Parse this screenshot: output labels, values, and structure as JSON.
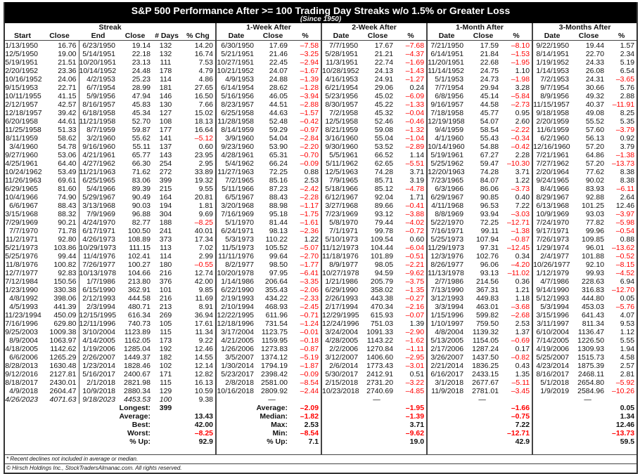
{
  "title": "S&P 500 Performance After >= 100 Trading Day Streaks w/o 1.5% or Greater Loss",
  "subtitle": "(Since 1950)",
  "groups": {
    "streak": "Streak",
    "w1": "1-Week After",
    "w2": "2-Week After",
    "m1": "1-Month After",
    "m3": "3-Months After"
  },
  "columns": {
    "streak": [
      "Start",
      "Close",
      "End",
      "Close",
      "# Days",
      "% Chg"
    ],
    "after": [
      "Date",
      "Close",
      "%"
    ]
  },
  "streak": [
    [
      "1/13/1950",
      "16.76",
      "6/23/1950",
      "19.14",
      "132",
      "14.20"
    ],
    [
      "12/5/1950",
      "19.00",
      "5/14/1951",
      "22.18",
      "132",
      "16.74"
    ],
    [
      "5/19/1951",
      "21.51",
      "10/20/1951",
      "23.13",
      "111",
      "7.53"
    ],
    [
      "2/20/1952",
      "23.36",
      "10/14/1952",
      "24.48",
      "178",
      "4.79"
    ],
    [
      "10/16/1952",
      "24.06",
      "4/2/1953",
      "25.23",
      "114",
      "4.86"
    ],
    [
      "9/15/1953",
      "22.71",
      "6/7/1954",
      "28.99",
      "181",
      "27.65"
    ],
    [
      "10/11/1955",
      "41.15",
      "5/9/1956",
      "47.94",
      "146",
      "16.50"
    ],
    [
      "2/12/1957",
      "42.57",
      "8/16/1957",
      "45.83",
      "130",
      "7.66"
    ],
    [
      "12/18/1957",
      "39.42",
      "6/18/1958",
      "45.34",
      "127",
      "15.02"
    ],
    [
      "6/20/1958",
      "44.61",
      "11/21/1958",
      "52.70",
      "108",
      "18.13"
    ],
    [
      "11/25/1958",
      "51.33",
      "8/7/1959",
      "59.87",
      "177",
      "16.64"
    ],
    [
      "8/11/1959",
      "58.62",
      "3/2/1960",
      "55.62",
      "141",
      "–5.12"
    ],
    [
      "3/4/1960",
      "54.78",
      "9/16/1960",
      "55.11",
      "137",
      "0.60"
    ],
    [
      "9/27/1960",
      "53.06",
      "4/21/1961",
      "65.77",
      "143",
      "23.95"
    ],
    [
      "4/25/1961",
      "64.40",
      "4/27/1962",
      "66.30",
      "254",
      "2.95"
    ],
    [
      "10/24/1962",
      "53.49",
      "11/21/1963",
      "71.62",
      "272",
      "33.89"
    ],
    [
      "11/26/1963",
      "69.61",
      "6/25/1965",
      "83.06",
      "399",
      "19.32"
    ],
    [
      "6/29/1965",
      "81.60",
      "5/4/1966",
      "89.39",
      "215",
      "9.55"
    ],
    [
      "10/4/1966",
      "74.90",
      "5/29/1967",
      "90.49",
      "164",
      "20.81"
    ],
    [
      "6/6/1967",
      "88.43",
      "3/13/1968",
      "90.03",
      "194",
      "1.81"
    ],
    [
      "3/15/1968",
      "88.32",
      "7/9/1969",
      "96.88",
      "304",
      "9.69"
    ],
    [
      "7/29/1969",
      "90.21",
      "4/24/1970",
      "82.77",
      "188",
      "–8.25"
    ],
    [
      "7/7/1970",
      "71.78",
      "6/17/1971",
      "100.50",
      "241",
      "40.01"
    ],
    [
      "11/2/1971",
      "92.80",
      "4/26/1973",
      "108.89",
      "373",
      "17.34"
    ],
    [
      "5/21/1973",
      "103.86",
      "10/29/1973",
      "111.15",
      "113",
      "7.02"
    ],
    [
      "5/25/1976",
      "99.44",
      "11/4/1976",
      "102.41",
      "114",
      "2.99"
    ],
    [
      "11/8/1976",
      "100.82",
      "7/26/1977",
      "100.27",
      "180",
      "–0.55"
    ],
    [
      "12/7/1977",
      "92.83",
      "10/13/1978",
      "104.66",
      "216",
      "12.74"
    ],
    [
      "7/12/1984",
      "150.56",
      "1/7/1986",
      "213.80",
      "376",
      "42.00"
    ],
    [
      "1/23/1990",
      "330.38",
      "6/15/1990",
      "362.91",
      "101",
      "9.85"
    ],
    [
      "4/8/1992",
      "398.06",
      "2/12/1993",
      "444.58",
      "216",
      "11.69"
    ],
    [
      "4/5/1993",
      "441.39",
      "2/3/1994",
      "480.71",
      "213",
      "8.91"
    ],
    [
      "11/23/1994",
      "450.09",
      "12/15/1995",
      "616.34",
      "269",
      "36.94"
    ],
    [
      "7/16/1996",
      "629.80",
      "12/11/1996",
      "740.73",
      "105",
      "17.61"
    ],
    [
      "9/25/2003",
      "1009.38",
      "3/10/2004",
      "1123.89",
      "115",
      "11.34"
    ],
    [
      "8/9/2004",
      "1063.97",
      "4/14/2005",
      "1162.05",
      "173",
      "9.22"
    ],
    [
      "4/18/2005",
      "1142.62",
      "1/19/2006",
      "1285.04",
      "192",
      "12.46"
    ],
    [
      "6/6/2006",
      "1265.29",
      "2/26/2007",
      "1449.37",
      "182",
      "14.55"
    ],
    [
      "8/28/2013",
      "1630.48",
      "1/23/2014",
      "1828.46",
      "102",
      "12.14"
    ],
    [
      "9/12/2016",
      "2127.81",
      "5/16/2017",
      "2400.67",
      "171",
      "12.82"
    ],
    [
      "8/18/2017",
      "2430.01",
      "2/1/2018",
      "2821.98",
      "115",
      "16.13"
    ],
    [
      "4/9/2018",
      "2604.47",
      "10/9/2018",
      "2880.34",
      "129",
      "10.59"
    ],
    [
      "4/26/2023",
      "4071.63",
      "9/18/2023",
      "4453.53",
      "100",
      "9.38"
    ]
  ],
  "w1": [
    [
      "6/30/1950",
      "17.69",
      "–7.58"
    ],
    [
      "5/21/1951",
      "21.46",
      "–3.25"
    ],
    [
      "10/27/1951",
      "22.45",
      "–2.94"
    ],
    [
      "10/21/1952",
      "24.07",
      "–1.67"
    ],
    [
      "4/9/1953",
      "24.88",
      "–1.39"
    ],
    [
      "6/14/1954",
      "28.62",
      "–1.28"
    ],
    [
      "5/16/1956",
      "46.05",
      "–3.94"
    ],
    [
      "8/23/1957",
      "44.51",
      "–2.88"
    ],
    [
      "6/25/1958",
      "44.63",
      "–1.57"
    ],
    [
      "11/28/1958",
      "52.48",
      "–0.42"
    ],
    [
      "8/14/1959",
      "59.29",
      "–0.97"
    ],
    [
      "3/9/1960",
      "54.04",
      "–2.84"
    ],
    [
      "9/23/1960",
      "53.90",
      "–2.20"
    ],
    [
      "4/28/1961",
      "65.31",
      "–0.70"
    ],
    [
      "5/4/1962",
      "66.24",
      "–0.09"
    ],
    [
      "11/27/1963",
      "72.25",
      "0.88"
    ],
    [
      "7/2/1965",
      "85.16",
      "2.53"
    ],
    [
      "5/11/1966",
      "87.23",
      "–2.42"
    ],
    [
      "6/5/1967",
      "88.43",
      "–2.28"
    ],
    [
      "3/20/1968",
      "88.98",
      "–1.17"
    ],
    [
      "7/16/1969",
      "95.18",
      "–1.75"
    ],
    [
      "5/1/1970",
      "81.44",
      "–1.61"
    ],
    [
      "6/24/1971",
      "98.13",
      "–2.36"
    ],
    [
      "5/3/1973",
      "110.22",
      "1.22"
    ],
    [
      "11/5/1973",
      "105.52",
      "–5.07"
    ],
    [
      "11/11/1976",
      "99.64",
      "–2.70"
    ],
    [
      "8/2/1977",
      "98.50",
      "–1.77"
    ],
    [
      "10/20/1978",
      "97.95",
      "–6.41"
    ],
    [
      "1/14/1986",
      "206.64",
      "–3.35"
    ],
    [
      "6/22/1990",
      "355.43",
      "–2.06"
    ],
    [
      "2/19/1993",
      "434.22",
      "–2.33"
    ],
    [
      "2/10/1994",
      "468.93",
      "–2.45"
    ],
    [
      "12/22/1995",
      "611.96",
      "–0.71"
    ],
    [
      "12/18/1996",
      "731.54",
      "–1.24"
    ],
    [
      "3/17/2004",
      "1123.75",
      "–0.01"
    ],
    [
      "4/21/2005",
      "1159.95",
      "–0.18"
    ],
    [
      "1/26/2006",
      "1273.83",
      "–0.87"
    ],
    [
      "3/5/2007",
      "1374.12",
      "–5.19"
    ],
    [
      "1/30/2014",
      "1794.19",
      "–1.87"
    ],
    [
      "5/23/2017",
      "2398.42",
      "–0.09"
    ],
    [
      "2/8/2018",
      "2581.00",
      "–8.54"
    ],
    [
      "10/16/2018",
      "2809.92",
      "–2.44"
    ],
    [
      "",
      "—",
      ""
    ]
  ],
  "w2": [
    [
      "7/7/1950",
      "17.67",
      "–7.68"
    ],
    [
      "5/28/1951",
      "21.21",
      "–4.37"
    ],
    [
      "11/3/1951",
      "22.74",
      "–1.69"
    ],
    [
      "10/28/1952",
      "24.13",
      "–1.43"
    ],
    [
      "4/16/1953",
      "24.91",
      "–1.27"
    ],
    [
      "6/21/1954",
      "29.06",
      "0.24"
    ],
    [
      "5/23/1956",
      "45.02",
      "–6.09"
    ],
    [
      "8/30/1957",
      "45.22",
      "–1.33"
    ],
    [
      "7/2/1958",
      "45.32",
      "–0.04"
    ],
    [
      "12/5/1958",
      "52.46",
      "–0.46"
    ],
    [
      "8/21/1959",
      "59.08",
      "–1.32"
    ],
    [
      "3/16/1960",
      "55.04",
      "–1.04"
    ],
    [
      "9/30/1960",
      "53.52",
      "–2.89"
    ],
    [
      "5/5/1961",
      "66.52",
      "1.14"
    ],
    [
      "5/11/1962",
      "62.65",
      "–5.51"
    ],
    [
      "12/5/1963",
      "74.28",
      "3.71"
    ],
    [
      "7/9/1965",
      "85.71",
      "3.19"
    ],
    [
      "5/18/1966",
      "85.12",
      "–4.78"
    ],
    [
      "6/12/1967",
      "92.04",
      "1.71"
    ],
    [
      "3/27/1968",
      "89.66",
      "–0.41"
    ],
    [
      "7/23/1969",
      "93.12",
      "–3.88"
    ],
    [
      "5/8/1970",
      "79.44",
      "–4.02"
    ],
    [
      "7/1/1971",
      "99.78",
      "–0.72"
    ],
    [
      "5/10/1973",
      "109.54",
      "0.60"
    ],
    [
      "11/12/1973",
      "104.44",
      "–6.04"
    ],
    [
      "11/18/1976",
      "101.89",
      "–0.51"
    ],
    [
      "8/9/1977",
      "98.05",
      "–2.21"
    ],
    [
      "10/27/1978",
      "94.59",
      "–9.62"
    ],
    [
      "1/21/1986",
      "205.79",
      "–3.75"
    ],
    [
      "6/29/1990",
      "358.02",
      "–1.35"
    ],
    [
      "2/26/1993",
      "443.38",
      "–0.27"
    ],
    [
      "2/17/1994",
      "470.34",
      "–2.16"
    ],
    [
      "12/29/1995",
      "615.93",
      "–0.07"
    ],
    [
      "12/24/1996",
      "751.03",
      "1.39"
    ],
    [
      "3/24/2004",
      "1091.33",
      "–2.90"
    ],
    [
      "4/28/2005",
      "1143.22",
      "–1.62"
    ],
    [
      "2/2/2006",
      "1270.84",
      "–1.11"
    ],
    [
      "3/12/2007",
      "1406.60",
      "–2.95"
    ],
    [
      "2/6/2014",
      "1773.43",
      "–3.01"
    ],
    [
      "5/30/2017",
      "2412.91",
      "0.51"
    ],
    [
      "2/15/2018",
      "2731.20",
      "–3.22"
    ],
    [
      "10/23/2018",
      "2740.69",
      "–4.85"
    ],
    [
      "",
      "—",
      ""
    ]
  ],
  "m1": [
    [
      "7/21/1950",
      "17.59",
      "–8.10"
    ],
    [
      "6/14/1951",
      "21.84",
      "–1.53"
    ],
    [
      "11/20/1951",
      "22.68",
      "–1.95"
    ],
    [
      "11/14/1952",
      "24.75",
      "1.10"
    ],
    [
      "5/1/1953",
      "24.73",
      "–1.98"
    ],
    [
      "7/7/1954",
      "29.94",
      "3.28"
    ],
    [
      "6/8/1956",
      "45.14",
      "–5.84"
    ],
    [
      "9/16/1957",
      "44.58",
      "–2.73"
    ],
    [
      "7/18/1958",
      "45.77",
      "0.95"
    ],
    [
      "12/19/1958",
      "54.07",
      "2.60"
    ],
    [
      "9/4/1959",
      "58.54",
      "–2.22"
    ],
    [
      "4/1/1960",
      "55.43",
      "–0.34"
    ],
    [
      "10/14/1960",
      "54.88",
      "–0.42"
    ],
    [
      "5/19/1961",
      "67.27",
      "2.28"
    ],
    [
      "5/25/1962",
      "59.47",
      "–10.30"
    ],
    [
      "12/20/1963",
      "74.28",
      "3.71"
    ],
    [
      "7/23/1965",
      "84.07",
      "1.22"
    ],
    [
      "6/3/1966",
      "86.06",
      "–3.73"
    ],
    [
      "6/29/1967",
      "90.85",
      "0.40"
    ],
    [
      "4/11/1968",
      "96.53",
      "7.22"
    ],
    [
      "8/8/1969",
      "93.94",
      "–3.03"
    ],
    [
      "5/22/1970",
      "72.25",
      "–12.71"
    ],
    [
      "7/16/1971",
      "99.11",
      "–1.38"
    ],
    [
      "5/25/1973",
      "107.94",
      "–0.87"
    ],
    [
      "11/29/1973",
      "97.31",
      "–12.45"
    ],
    [
      "12/3/1976",
      "102.76",
      "0.34"
    ],
    [
      "8/26/1977",
      "96.06",
      "–4.20"
    ],
    [
      "11/13/1978",
      "93.13",
      "–11.02"
    ],
    [
      "2/7/1986",
      "214.56",
      "0.36"
    ],
    [
      "7/13/1990",
      "367.31",
      "1.21"
    ],
    [
      "3/12/1993",
      "449.83",
      "1.18"
    ],
    [
      "3/3/1994",
      "463.01",
      "–3.68"
    ],
    [
      "1/15/1996",
      "599.82",
      "–2.68"
    ],
    [
      "1/10/1997",
      "759.50",
      "2.53"
    ],
    [
      "4/8/2004",
      "1139.32",
      "1.37"
    ],
    [
      "5/13/2005",
      "1154.05",
      "–0.69"
    ],
    [
      "2/17/2006",
      "1287.24",
      "0.17"
    ],
    [
      "3/26/2007",
      "1437.50",
      "–0.82"
    ],
    [
      "2/21/2014",
      "1836.25",
      "0.43"
    ],
    [
      "6/16/2017",
      "2433.15",
      "1.35"
    ],
    [
      "3/1/2018",
      "2677.67",
      "–5.11"
    ],
    [
      "11/9/2018",
      "2781.01",
      "–3.45"
    ],
    [
      "",
      "—",
      ""
    ]
  ],
  "m3": [
    [
      "9/22/1950",
      "19.44",
      "1.57"
    ],
    [
      "8/14/1951",
      "22.70",
      "2.34"
    ],
    [
      "1/19/1952",
      "24.33",
      "5.19"
    ],
    [
      "1/14/1953",
      "26.08",
      "6.54"
    ],
    [
      "7/2/1953",
      "24.31",
      "–3.65"
    ],
    [
      "9/7/1954",
      "30.66",
      "5.76"
    ],
    [
      "8/9/1956",
      "49.32",
      "2.88"
    ],
    [
      "11/15/1957",
      "40.37",
      "–11.91"
    ],
    [
      "9/18/1958",
      "49.08",
      "8.25"
    ],
    [
      "2/20/1959",
      "55.52",
      "5.35"
    ],
    [
      "11/6/1959",
      "57.60",
      "–3.79"
    ],
    [
      "6/2/1960",
      "56.13",
      "0.92"
    ],
    [
      "12/16/1960",
      "57.20",
      "3.79"
    ],
    [
      "7/21/1961",
      "64.86",
      "–1.38"
    ],
    [
      "7/27/1962",
      "57.20",
      "–13.73"
    ],
    [
      "2/20/1964",
      "77.62",
      "8.38"
    ],
    [
      "9/24/1965",
      "90.02",
      "8.38"
    ],
    [
      "8/4/1966",
      "83.93",
      "–6.11"
    ],
    [
      "8/29/1967",
      "92.88",
      "2.64"
    ],
    [
      "6/13/1968",
      "101.25",
      "12.46"
    ],
    [
      "10/9/1969",
      "93.03",
      "–3.97"
    ],
    [
      "7/24/1970",
      "77.82",
      "–5.98"
    ],
    [
      "9/17/1971",
      "99.96",
      "–0.54"
    ],
    [
      "7/26/1973",
      "109.85",
      "0.88"
    ],
    [
      "1/29/1974",
      "96.01",
      "–13.62"
    ],
    [
      "2/4/1977",
      "101.88",
      "–0.52"
    ],
    [
      "10/26/1977",
      "92.10",
      "–8.15"
    ],
    [
      "1/12/1979",
      "99.93",
      "–4.52"
    ],
    [
      "4/7/1986",
      "228.63",
      "6.94"
    ],
    [
      "9/14/1990",
      "316.83",
      "–12.70"
    ],
    [
      "5/12/1993",
      "444.80",
      "0.05"
    ],
    [
      "5/3/1994",
      "453.03",
      "–5.76"
    ],
    [
      "3/15/1996",
      "641.43",
      "4.07"
    ],
    [
      "3/11/1997",
      "811.34",
      "9.53"
    ],
    [
      "6/10/2004",
      "1136.47",
      "1.12"
    ],
    [
      "7/14/2005",
      "1226.50",
      "5.55"
    ],
    [
      "4/19/2006",
      "1309.93",
      "1.94"
    ],
    [
      "5/25/2007",
      "1515.73",
      "4.58"
    ],
    [
      "4/23/2014",
      "1875.39",
      "2.57"
    ],
    [
      "8/16/2017",
      "2468.11",
      "2.81"
    ],
    [
      "5/1/2018",
      "2654.80",
      "–5.92"
    ],
    [
      "1/9/2019",
      "2584.96",
      "–10.26"
    ],
    [
      "",
      "—",
      ""
    ]
  ],
  "summary": {
    "streak": [
      [
        "Longest:",
        "399",
        ""
      ],
      [
        "Average:",
        "",
        "13.43"
      ],
      [
        "Best:",
        "",
        "42.00"
      ],
      [
        "Worst:",
        "",
        "–8.25"
      ],
      [
        "% Up:",
        "",
        "92.9"
      ]
    ],
    "after_labels": [
      "Average:",
      "Median:",
      "Max:",
      "Min:",
      "% Up:"
    ],
    "w1": [
      "–2.09",
      "–1.82",
      "2.53",
      "–8.54",
      "7.1"
    ],
    "w2": [
      "–1.95",
      "–1.39",
      "3.71",
      "–9.62",
      "19.0"
    ],
    "m1": [
      "–1.66",
      "–0.75",
      "7.22",
      "–12.71",
      "42.9"
    ],
    "m3": [
      "0.05",
      "1.34",
      "12.46",
      "–13.73",
      "59.5"
    ]
  },
  "footer": {
    "note": "* Recent declines not included in average or median.",
    "copyright": "© Hirsch Holdings Inc., StockTradersAlmanac.com. All rights reserved."
  },
  "colors": {
    "negative": "#ff0000",
    "title_bg": "#000000"
  }
}
